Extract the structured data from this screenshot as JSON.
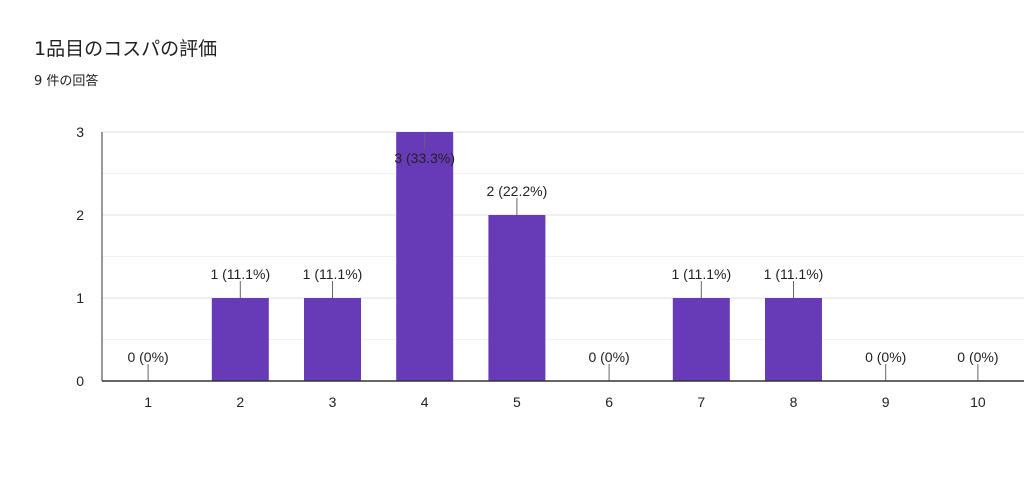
{
  "header": {
    "title": "1品目のコスパの評価",
    "response_count": "9 件の回答"
  },
  "colors": {
    "bar": "#673ab7",
    "grid": "#e0e0e0",
    "axis": "#333333"
  },
  "chart_data": {
    "type": "bar",
    "title": "1品目のコスパの評価",
    "subtitle": "9 件の回答",
    "categories": [
      "1",
      "2",
      "3",
      "4",
      "5",
      "6",
      "7",
      "8",
      "9",
      "10"
    ],
    "values": [
      0,
      1,
      1,
      3,
      2,
      0,
      1,
      1,
      0,
      0
    ],
    "data_labels": [
      "0 (0%)",
      "1 (11.1%)",
      "1 (11.1%)",
      "3 (33.3%)",
      "2 (22.2%)",
      "0 (0%)",
      "1 (11.1%)",
      "1 (11.1%)",
      "0 (0%)",
      "0 (0%)"
    ],
    "ylim": [
      0,
      3
    ],
    "yticks": [
      "0",
      "1",
      "2",
      "3"
    ],
    "grid": true,
    "legend": "none"
  }
}
